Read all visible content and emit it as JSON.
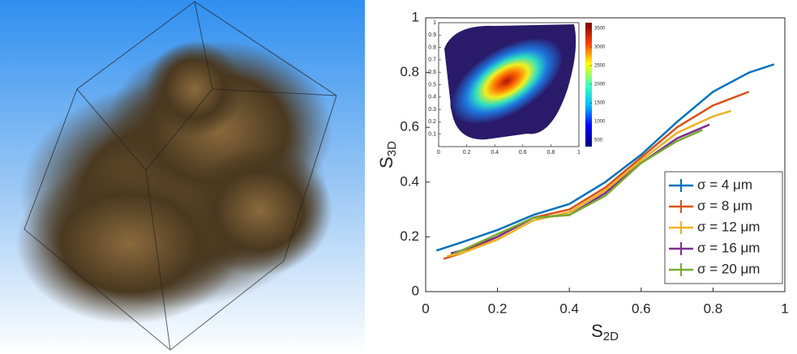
{
  "chart_data": [
    {
      "type": "line",
      "x_label": {
        "main": "S",
        "sub": "2D"
      },
      "y_label": {
        "main": "S",
        "sub": "3D"
      },
      "xlim": [
        0,
        1
      ],
      "ylim": [
        0,
        1
      ],
      "xticks": [
        0,
        0.2,
        0.4,
        0.6,
        0.8,
        1
      ],
      "yticks": [
        0,
        0.2,
        0.4,
        0.6,
        0.8,
        1
      ],
      "legend": "lower right",
      "series": [
        {
          "name": "σ = 4 μm",
          "color": "#0072bd",
          "x": [
            0.03,
            0.1,
            0.2,
            0.3,
            0.4,
            0.5,
            0.6,
            0.7,
            0.8,
            0.9,
            0.97
          ],
          "values": [
            0.15,
            0.18,
            0.225,
            0.28,
            0.32,
            0.4,
            0.5,
            0.62,
            0.73,
            0.8,
            0.83
          ]
        },
        {
          "name": "σ = 8 μm",
          "color": "#d95319",
          "x": [
            0.05,
            0.1,
            0.2,
            0.3,
            0.4,
            0.5,
            0.6,
            0.7,
            0.8,
            0.9
          ],
          "values": [
            0.12,
            0.14,
            0.2,
            0.27,
            0.3,
            0.38,
            0.49,
            0.6,
            0.68,
            0.73
          ]
        },
        {
          "name": "σ = 12 μm",
          "color": "#edb120",
          "x": [
            0.06,
            0.1,
            0.2,
            0.3,
            0.4,
            0.5,
            0.6,
            0.7,
            0.8,
            0.85
          ],
          "values": [
            0.13,
            0.14,
            0.19,
            0.26,
            0.29,
            0.37,
            0.48,
            0.58,
            0.64,
            0.66
          ]
        },
        {
          "name": "σ = 16 μm",
          "color": "#7e2f8e",
          "x": [
            0.07,
            0.1,
            0.2,
            0.3,
            0.4,
            0.5,
            0.6,
            0.7,
            0.79
          ],
          "values": [
            0.14,
            0.15,
            0.2,
            0.27,
            0.28,
            0.36,
            0.47,
            0.56,
            0.61
          ]
        },
        {
          "name": "σ = 20 μm",
          "color": "#77ac30",
          "x": [
            0.08,
            0.1,
            0.2,
            0.3,
            0.4,
            0.5,
            0.6,
            0.7,
            0.77
          ],
          "values": [
            0.14,
            0.15,
            0.21,
            0.27,
            0.28,
            0.35,
            0.47,
            0.55,
            0.59
          ]
        }
      ]
    },
    {
      "type": "density",
      "xlim": [
        0,
        1
      ],
      "ylim": [
        0,
        1
      ],
      "xticks": [
        0,
        0.2,
        0.4,
        0.6,
        0.8,
        1
      ],
      "yticks": [
        0.1,
        0.2,
        0.3,
        0.4,
        0.5,
        0.6,
        0.7,
        0.8,
        0.9,
        1
      ],
      "clim": [
        330,
        3650
      ],
      "cticks": [
        500,
        1000,
        1500,
        2000,
        2500,
        3000,
        3500
      ],
      "colormap": "jet"
    }
  ]
}
